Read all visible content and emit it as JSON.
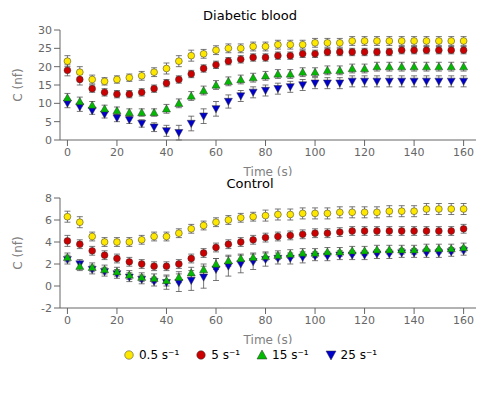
{
  "chart_data": [
    {
      "type": "scatter",
      "title": "Diabetic blood",
      "xlabel": "Time (s)",
      "ylabel": "C (nf)",
      "x": [
        0,
        5,
        10,
        15,
        20,
        25,
        30,
        35,
        40,
        45,
        50,
        55,
        60,
        65,
        70,
        75,
        80,
        85,
        90,
        95,
        100,
        105,
        110,
        115,
        120,
        125,
        130,
        135,
        140,
        145,
        150,
        155,
        160
      ],
      "xlim": [
        -3,
        165
      ],
      "xticks": [
        0,
        20,
        40,
        60,
        80,
        100,
        120,
        140,
        160
      ],
      "ylim": [
        0,
        30
      ],
      "yticks": [
        0,
        5,
        10,
        15,
        20,
        25,
        30
      ],
      "grid": false,
      "series": [
        {
          "name": "0.5 s⁻¹",
          "color": "#FFE800",
          "marker": "circle",
          "values": [
            21.5,
            18.5,
            16.5,
            16.0,
            16.5,
            17.0,
            17.5,
            18.5,
            19.5,
            21.5,
            23.0,
            23.5,
            24.5,
            25.0,
            25.0,
            25.5,
            25.5,
            26.0,
            26.0,
            26.0,
            26.5,
            26.5,
            26.5,
            27.0,
            27.0,
            27.0,
            27.0,
            27.0,
            27.0,
            27.0,
            27.0,
            27.0,
            27.0
          ],
          "errors": [
            1.5,
            1.5,
            1.2,
            1.0,
            1.0,
            1.0,
            1.2,
            1.2,
            1.5,
            1.5,
            1.5,
            1.2,
            1.2,
            1.2,
            1.2,
            1.2,
            1.2,
            1.2,
            1.2,
            1.2,
            1.2,
            1.2,
            1.2,
            1.2,
            1.2,
            1.2,
            1.2,
            1.2,
            1.2,
            1.2,
            1.2,
            1.2,
            1.2
          ]
        },
        {
          "name": "5 s⁻¹",
          "color": "#CC0000",
          "marker": "circle",
          "values": [
            19.0,
            16.5,
            14.0,
            13.0,
            12.5,
            12.5,
            13.0,
            14.0,
            15.5,
            16.5,
            18.0,
            19.5,
            20.5,
            21.5,
            22.0,
            22.5,
            22.5,
            23.0,
            23.0,
            23.5,
            23.5,
            24.0,
            24.0,
            24.0,
            24.0,
            24.0,
            24.0,
            24.5,
            24.5,
            24.5,
            24.5,
            24.5,
            24.5
          ],
          "errors": [
            1.5,
            1.5,
            1.0,
            1.0,
            1.0,
            1.0,
            1.0,
            1.0,
            1.0,
            1.0,
            1.0,
            1.0,
            1.0,
            1.0,
            1.0,
            1.0,
            1.0,
            1.0,
            1.0,
            1.0,
            1.0,
            1.0,
            1.0,
            1.0,
            1.0,
            1.0,
            1.0,
            1.0,
            1.0,
            1.0,
            1.0,
            1.0,
            1.0
          ]
        },
        {
          "name": "15 s⁻¹",
          "color": "#00BB00",
          "marker": "triangle-up",
          "values": [
            11.5,
            10.5,
            9.5,
            8.5,
            8.0,
            7.5,
            7.5,
            7.5,
            8.5,
            10.0,
            12.0,
            13.5,
            15.0,
            16.0,
            16.5,
            17.0,
            17.5,
            18.0,
            18.0,
            18.5,
            18.5,
            19.0,
            19.0,
            19.5,
            19.5,
            20.0,
            20.0,
            20.0,
            20.0,
            20.0,
            20.0,
            20.0,
            20.0
          ],
          "errors": [
            1.2,
            1.2,
            1.0,
            1.0,
            1.0,
            1.0,
            1.0,
            1.0,
            1.2,
            1.2,
            1.2,
            1.2,
            1.2,
            1.2,
            1.2,
            1.2,
            1.2,
            1.2,
            1.2,
            1.2,
            1.2,
            1.2,
            1.2,
            1.2,
            1.2,
            1.2,
            1.2,
            1.2,
            1.2,
            1.2,
            1.2,
            1.2,
            1.2
          ]
        },
        {
          "name": "25 s⁻¹",
          "color": "#0000CC",
          "marker": "triangle-down",
          "values": [
            10.0,
            9.0,
            8.0,
            7.0,
            6.0,
            5.5,
            4.5,
            3.5,
            2.5,
            2.0,
            4.5,
            6.5,
            8.5,
            10.5,
            12.0,
            13.0,
            13.5,
            14.0,
            14.5,
            15.0,
            15.5,
            15.5,
            15.5,
            16.0,
            16.0,
            16.0,
            16.0,
            16.0,
            16.0,
            16.0,
            16.0,
            16.0,
            16.0
          ],
          "errors": [
            1.2,
            1.2,
            1.0,
            1.0,
            1.0,
            1.0,
            1.0,
            1.2,
            1.5,
            2.0,
            2.0,
            2.0,
            2.0,
            1.8,
            1.5,
            1.5,
            1.5,
            1.5,
            1.5,
            1.5,
            1.5,
            1.5,
            1.5,
            1.5,
            1.5,
            1.5,
            1.5,
            1.5,
            1.5,
            1.5,
            1.5,
            1.5,
            1.5
          ]
        }
      ]
    },
    {
      "type": "scatter",
      "title": "Control",
      "xlabel": "Time (s)",
      "ylabel": "C (nf)",
      "x": [
        0,
        5,
        10,
        15,
        20,
        25,
        30,
        35,
        40,
        45,
        50,
        55,
        60,
        65,
        70,
        75,
        80,
        85,
        90,
        95,
        100,
        105,
        110,
        115,
        120,
        125,
        130,
        135,
        140,
        145,
        150,
        155,
        160
      ],
      "xlim": [
        -3,
        165
      ],
      "xticks": [
        0,
        20,
        40,
        60,
        80,
        100,
        120,
        140,
        160
      ],
      "ylim": [
        -2,
        8
      ],
      "yticks": [
        -2,
        0,
        2,
        4,
        6,
        8
      ],
      "grid": false,
      "legend": "bottom",
      "series": [
        {
          "name": "0.5 s⁻¹",
          "color": "#FFE800",
          "marker": "circle",
          "values": [
            6.3,
            5.8,
            4.5,
            4.0,
            4.0,
            4.0,
            4.2,
            4.5,
            4.5,
            4.8,
            5.2,
            5.5,
            5.8,
            6.0,
            6.2,
            6.3,
            6.4,
            6.5,
            6.5,
            6.6,
            6.6,
            6.6,
            6.7,
            6.7,
            6.7,
            6.7,
            6.8,
            6.8,
            6.8,
            7.0,
            7.0,
            7.0,
            7.0
          ],
          "errors": [
            0.5,
            0.5,
            0.4,
            0.4,
            0.4,
            0.4,
            0.4,
            0.4,
            0.4,
            0.4,
            0.4,
            0.4,
            0.4,
            0.4,
            0.4,
            0.4,
            0.5,
            0.5,
            0.5,
            0.5,
            0.5,
            0.5,
            0.5,
            0.5,
            0.5,
            0.5,
            0.5,
            0.5,
            0.5,
            0.5,
            0.5,
            0.5,
            0.5
          ]
        },
        {
          "name": "5 s⁻¹",
          "color": "#CC0000",
          "marker": "circle",
          "values": [
            4.1,
            3.8,
            3.2,
            2.8,
            2.5,
            2.2,
            2.0,
            1.8,
            1.8,
            2.0,
            2.5,
            3.0,
            3.5,
            3.8,
            4.0,
            4.2,
            4.4,
            4.5,
            4.6,
            4.7,
            4.8,
            4.8,
            4.9,
            5.0,
            5.0,
            5.0,
            5.0,
            5.0,
            5.0,
            5.0,
            5.0,
            5.0,
            5.2
          ],
          "errors": [
            0.5,
            0.4,
            0.4,
            0.4,
            0.4,
            0.4,
            0.4,
            0.4,
            0.4,
            0.4,
            0.4,
            0.4,
            0.4,
            0.4,
            0.4,
            0.4,
            0.4,
            0.4,
            0.4,
            0.4,
            0.4,
            0.4,
            0.4,
            0.4,
            0.4,
            0.4,
            0.4,
            0.4,
            0.4,
            0.4,
            0.4,
            0.4,
            0.4
          ]
        },
        {
          "name": "15 s⁻¹",
          "color": "#00BB00",
          "marker": "triangle-up",
          "values": [
            2.6,
            1.8,
            1.7,
            1.5,
            1.3,
            1.0,
            0.8,
            0.7,
            0.5,
            0.8,
            1.2,
            1.5,
            2.0,
            2.3,
            2.5,
            2.6,
            2.7,
            2.8,
            2.9,
            3.0,
            3.0,
            3.1,
            3.1,
            3.2,
            3.2,
            3.3,
            3.3,
            3.3,
            3.3,
            3.4,
            3.4,
            3.4,
            3.5
          ],
          "errors": [
            0.4,
            0.4,
            0.4,
            0.4,
            0.4,
            0.4,
            0.4,
            0.4,
            0.5,
            0.5,
            0.5,
            0.5,
            0.5,
            0.5,
            0.4,
            0.4,
            0.4,
            0.4,
            0.4,
            0.4,
            0.4,
            0.4,
            0.4,
            0.4,
            0.4,
            0.4,
            0.4,
            0.4,
            0.4,
            0.4,
            0.4,
            0.4,
            0.4
          ]
        },
        {
          "name": "25 s⁻¹",
          "color": "#0000CC",
          "marker": "triangle-down",
          "values": [
            2.4,
            2.0,
            1.5,
            1.3,
            1.1,
            0.8,
            0.6,
            0.4,
            0.3,
            0.3,
            0.5,
            0.8,
            1.5,
            1.8,
            2.0,
            2.2,
            2.4,
            2.5,
            2.5,
            2.6,
            2.7,
            2.7,
            2.8,
            2.8,
            2.8,
            2.9,
            2.9,
            3.0,
            3.0,
            3.0,
            3.0,
            3.1,
            3.2
          ],
          "errors": [
            0.4,
            0.4,
            0.4,
            0.4,
            0.4,
            0.4,
            0.4,
            0.4,
            0.6,
            0.8,
            0.9,
            1.0,
            1.0,
            0.9,
            0.8,
            0.7,
            0.6,
            0.5,
            0.5,
            0.5,
            0.4,
            0.4,
            0.4,
            0.4,
            0.4,
            0.4,
            0.4,
            0.4,
            0.4,
            0.4,
            0.4,
            0.4,
            0.4
          ]
        }
      ]
    }
  ]
}
